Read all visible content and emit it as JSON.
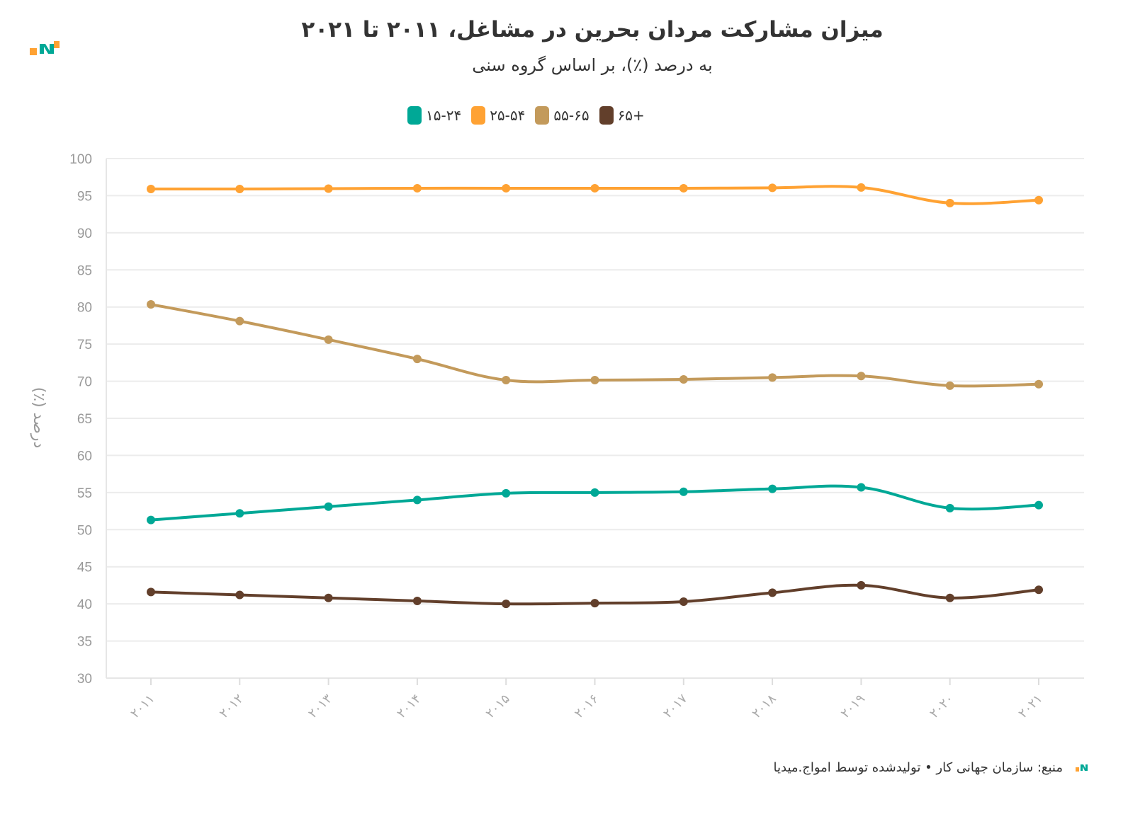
{
  "header": {
    "title": "میزان مشارکت مردان بحرین در مشاغل، ۲۰۱۱ تا ۲۰۲۱",
    "subtitle": "به درصد (٪)، بر اساس گروه سنی"
  },
  "footer": {
    "text": "منبع: سازمان جهانی کار • تولیدشده توسط امواج.میدیا"
  },
  "chart_data": {
    "type": "line",
    "title": "میزان مشارکت مردان بحرین در مشاغل، ۲۰۱۱ تا ۲۰۲۱",
    "subtitle": "به درصد (٪)، بر اساس گروه سنی",
    "xlabel": "",
    "ylabel": "درصد (٪)",
    "ylim": [
      30,
      100
    ],
    "yticks": [
      30,
      35,
      40,
      45,
      50,
      55,
      60,
      65,
      70,
      75,
      80,
      85,
      90,
      95,
      100
    ],
    "grid": true,
    "legend_position": "top-center",
    "categories": [
      "۲۰۱۱",
      "۲۰۱۲",
      "۲۰۱۳",
      "۲۰۱۴",
      "۲۰۱۵",
      "۲۰۱۶",
      "۲۰۱۷",
      "۲۰۱۸",
      "۲۰۱۹",
      "۲۰۲۰",
      "۲۰۲۱"
    ],
    "series": [
      {
        "name": "۱۵-۲۴",
        "color": "#00a896",
        "values": [
          51.3,
          52.2,
          53.1,
          54.0,
          54.9,
          55.0,
          55.1,
          55.5,
          55.7,
          52.9,
          53.3
        ]
      },
      {
        "name": "۲۵-۵۴",
        "color": "#ffa233",
        "values": [
          95.9,
          95.9,
          95.95,
          96.0,
          96.0,
          96.0,
          96.0,
          96.05,
          96.1,
          94.0,
          94.4
        ]
      },
      {
        "name": "۵۵-۶۵",
        "color": "#c39a5b",
        "values": [
          80.35,
          78.1,
          75.6,
          73.0,
          70.15,
          70.15,
          70.25,
          70.5,
          70.7,
          69.4,
          69.6
        ]
      },
      {
        "name": "۶۵+",
        "color": "#623f2b",
        "values": [
          41.6,
          41.2,
          40.8,
          40.4,
          40.0,
          40.1,
          40.3,
          41.5,
          42.5,
          40.8,
          41.9
        ]
      }
    ]
  }
}
